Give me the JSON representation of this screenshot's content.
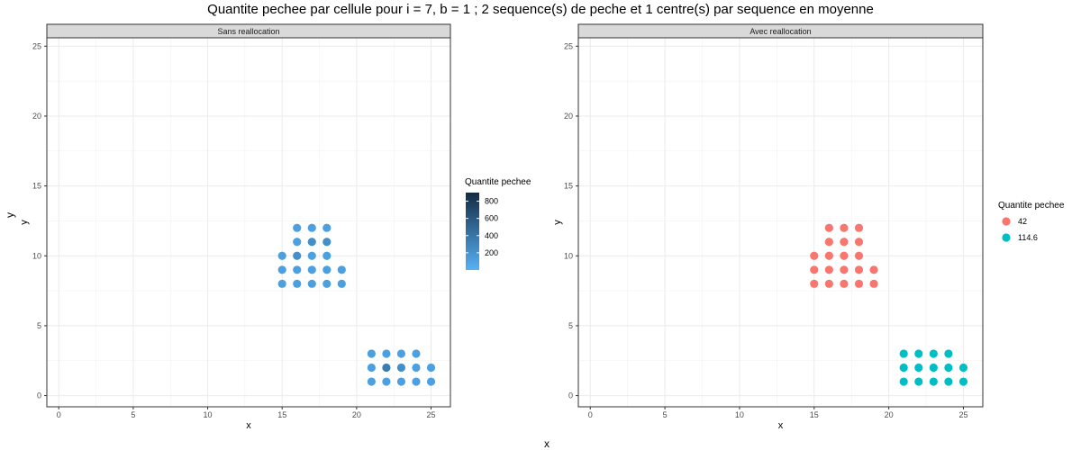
{
  "title": "Quantite pechee par cellule pour i = 7, b = 1 ; 2 sequence(s) de peche et 1 centre(s) par sequence en moyenne",
  "outer_xlabel": "x",
  "outer_ylabel": "y",
  "chart_data": [
    {
      "type": "scatter",
      "panel_title": "Sans reallocation",
      "xlabel": "x",
      "ylabel": "y",
      "xlim": [
        -0.8,
        26.3
      ],
      "ylim": [
        -0.8,
        25.6
      ],
      "x_ticks": [
        0,
        5,
        10,
        15,
        20,
        25
      ],
      "y_ticks": [
        0,
        5,
        10,
        15,
        20,
        25
      ],
      "grid": true,
      "legend": {
        "title": "Quantite pechee",
        "kind": "colorbar",
        "position": "right",
        "range": [
          0,
          900
        ],
        "ticks": [
          200,
          400,
          600,
          800
        ],
        "low_color": "#56B1F7",
        "high_color": "#132B43"
      },
      "points": [
        {
          "x": 15,
          "y": 8,
          "value": 115
        },
        {
          "x": 16,
          "y": 8,
          "value": 115
        },
        {
          "x": 17,
          "y": 8,
          "value": 115
        },
        {
          "x": 18,
          "y": 8,
          "value": 115
        },
        {
          "x": 19,
          "y": 8,
          "value": 115
        },
        {
          "x": 15,
          "y": 9,
          "value": 115
        },
        {
          "x": 16,
          "y": 9,
          "value": 115
        },
        {
          "x": 17,
          "y": 9,
          "value": 115
        },
        {
          "x": 18,
          "y": 9,
          "value": 115
        },
        {
          "x": 19,
          "y": 9,
          "value": 115
        },
        {
          "x": 15,
          "y": 10,
          "value": 115
        },
        {
          "x": 16,
          "y": 10,
          "value": 230
        },
        {
          "x": 17,
          "y": 10,
          "value": 115
        },
        {
          "x": 18,
          "y": 10,
          "value": 115
        },
        {
          "x": 16,
          "y": 11,
          "value": 115
        },
        {
          "x": 17,
          "y": 11,
          "value": 230
        },
        {
          "x": 18,
          "y": 11,
          "value": 230
        },
        {
          "x": 16,
          "y": 12,
          "value": 115
        },
        {
          "x": 17,
          "y": 12,
          "value": 115
        },
        {
          "x": 18,
          "y": 12,
          "value": 115
        },
        {
          "x": 21,
          "y": 1,
          "value": 115
        },
        {
          "x": 22,
          "y": 1,
          "value": 115
        },
        {
          "x": 23,
          "y": 1,
          "value": 115
        },
        {
          "x": 24,
          "y": 1,
          "value": 115
        },
        {
          "x": 25,
          "y": 1,
          "value": 115
        },
        {
          "x": 21,
          "y": 2,
          "value": 115
        },
        {
          "x": 22,
          "y": 2,
          "value": 350
        },
        {
          "x": 23,
          "y": 2,
          "value": 230
        },
        {
          "x": 24,
          "y": 2,
          "value": 115
        },
        {
          "x": 25,
          "y": 2,
          "value": 115
        },
        {
          "x": 21,
          "y": 3,
          "value": 115
        },
        {
          "x": 22,
          "y": 3,
          "value": 115
        },
        {
          "x": 23,
          "y": 3,
          "value": 115
        },
        {
          "x": 24,
          "y": 3,
          "value": 115
        }
      ]
    },
    {
      "type": "scatter",
      "panel_title": "Avec reallocation",
      "xlabel": "x",
      "ylabel": "y",
      "xlim": [
        -0.8,
        26.3
      ],
      "ylim": [
        -0.8,
        25.6
      ],
      "x_ticks": [
        0,
        5,
        10,
        15,
        20,
        25
      ],
      "y_ticks": [
        0,
        5,
        10,
        15,
        20,
        25
      ],
      "grid": true,
      "legend": {
        "title": "Quantite pechee",
        "kind": "discrete",
        "position": "right",
        "entries": [
          {
            "label": "42",
            "color": "#F8766D"
          },
          {
            "label": "114.6",
            "color": "#00BFC4"
          }
        ]
      },
      "points": [
        {
          "x": 15,
          "y": 8,
          "group": "42"
        },
        {
          "x": 16,
          "y": 8,
          "group": "42"
        },
        {
          "x": 17,
          "y": 8,
          "group": "42"
        },
        {
          "x": 18,
          "y": 8,
          "group": "42"
        },
        {
          "x": 19,
          "y": 8,
          "group": "42"
        },
        {
          "x": 15,
          "y": 9,
          "group": "42"
        },
        {
          "x": 16,
          "y": 9,
          "group": "42"
        },
        {
          "x": 17,
          "y": 9,
          "group": "42"
        },
        {
          "x": 18,
          "y": 9,
          "group": "42"
        },
        {
          "x": 19,
          "y": 9,
          "group": "42"
        },
        {
          "x": 15,
          "y": 10,
          "group": "42"
        },
        {
          "x": 16,
          "y": 10,
          "group": "42"
        },
        {
          "x": 17,
          "y": 10,
          "group": "42"
        },
        {
          "x": 18,
          "y": 10,
          "group": "42"
        },
        {
          "x": 16,
          "y": 11,
          "group": "42"
        },
        {
          "x": 17,
          "y": 11,
          "group": "42"
        },
        {
          "x": 18,
          "y": 11,
          "group": "42"
        },
        {
          "x": 16,
          "y": 12,
          "group": "42"
        },
        {
          "x": 17,
          "y": 12,
          "group": "42"
        },
        {
          "x": 18,
          "y": 12,
          "group": "42"
        },
        {
          "x": 21,
          "y": 1,
          "group": "114.6"
        },
        {
          "x": 22,
          "y": 1,
          "group": "114.6"
        },
        {
          "x": 23,
          "y": 1,
          "group": "114.6"
        },
        {
          "x": 24,
          "y": 1,
          "group": "114.6"
        },
        {
          "x": 25,
          "y": 1,
          "group": "114.6"
        },
        {
          "x": 21,
          "y": 2,
          "group": "114.6"
        },
        {
          "x": 22,
          "y": 2,
          "group": "114.6"
        },
        {
          "x": 23,
          "y": 2,
          "group": "114.6"
        },
        {
          "x": 24,
          "y": 2,
          "group": "114.6"
        },
        {
          "x": 25,
          "y": 2,
          "group": "114.6"
        },
        {
          "x": 21,
          "y": 3,
          "group": "114.6"
        },
        {
          "x": 22,
          "y": 3,
          "group": "114.6"
        },
        {
          "x": 23,
          "y": 3,
          "group": "114.6"
        },
        {
          "x": 24,
          "y": 3,
          "group": "114.6"
        }
      ]
    }
  ]
}
